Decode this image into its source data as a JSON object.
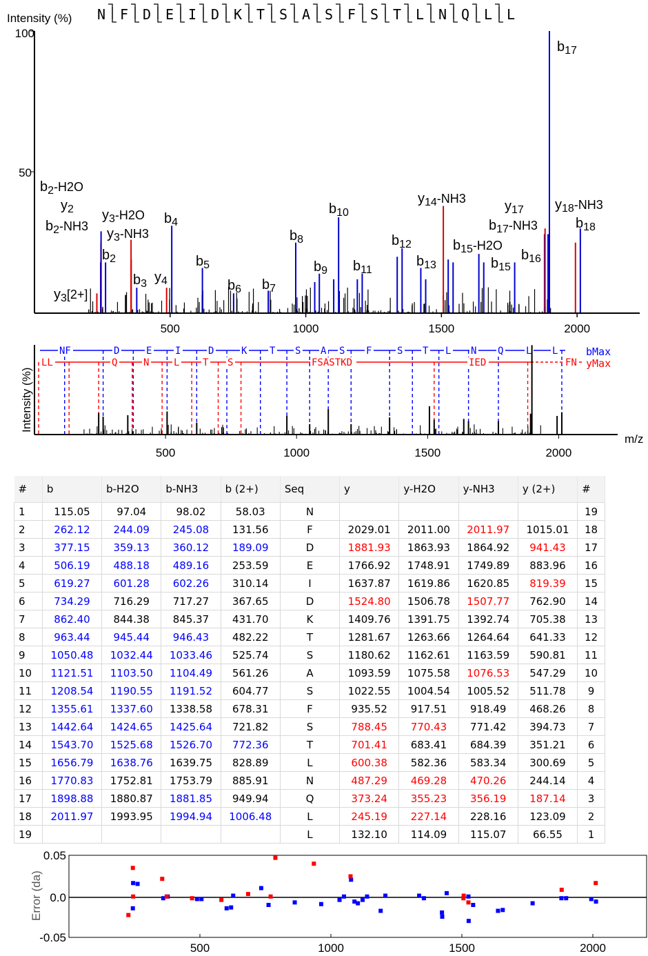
{
  "sequence": [
    "N",
    "F",
    "D",
    "E",
    "I",
    "D",
    "K",
    "T",
    "S",
    "A",
    "S",
    "F",
    "S",
    "T",
    "L",
    "N",
    "Q",
    "L",
    "L"
  ],
  "spectrum": {
    "ylabel": "Intensity (%)",
    "yticks": [
      "100",
      "50"
    ],
    "xticks": [
      "500",
      "1000",
      "1500",
      "2000"
    ],
    "xlim": [
      0,
      2200
    ],
    "ylim": [
      0,
      100
    ],
    "colors": {
      "b": "#0000cc",
      "y": "#dd0000",
      "other": "#000000"
    },
    "annotated_peaks": [
      {
        "mz": 230,
        "i": 7,
        "ion": "y",
        "label": "y3[2+]"
      },
      {
        "mz": 244,
        "i": 18,
        "ion": "b",
        "label": "b2-H2O"
      },
      {
        "mz": 245,
        "i": 25,
        "ion": "y",
        "label": "y2"
      },
      {
        "mz": 245.5,
        "i": 29,
        "ion": "b",
        "label": "b2-NH3"
      },
      {
        "mz": 262,
        "i": 18,
        "ion": "b",
        "label": "b2"
      },
      {
        "mz": 356,
        "i": 26,
        "ion": "y",
        "label": "y3-H2O"
      },
      {
        "mz": 356.5,
        "i": 19,
        "ion": "y",
        "label": "y3-NH3"
      },
      {
        "mz": 377,
        "i": 9,
        "ion": "b",
        "label": "b3"
      },
      {
        "mz": 487,
        "i": 9,
        "ion": "y",
        "label": "y4"
      },
      {
        "mz": 506,
        "i": 31,
        "ion": "b",
        "label": "b4"
      },
      {
        "mz": 619,
        "i": 16,
        "ion": "b",
        "label": "b5"
      },
      {
        "mz": 734,
        "i": 7,
        "ion": "b",
        "label": "b6"
      },
      {
        "mz": 862,
        "i": 8,
        "ion": "b",
        "label": "b7"
      },
      {
        "mz": 963,
        "i": 25,
        "ion": "b",
        "label": "b8"
      },
      {
        "mz": 1050,
        "i": 14,
        "ion": "b",
        "label": "b9"
      },
      {
        "mz": 1121,
        "i": 34,
        "ion": "b",
        "label": "b10"
      },
      {
        "mz": 1208,
        "i": 14,
        "ion": "b",
        "label": "b11"
      },
      {
        "mz": 1355,
        "i": 23,
        "ion": "b",
        "label": "b12"
      },
      {
        "mz": 1442,
        "i": 12,
        "ion": "b",
        "label": "b13"
      },
      {
        "mz": 1507,
        "i": 38,
        "ion": "y",
        "label": "y14-NH3"
      },
      {
        "mz": 1525,
        "i": 19,
        "ion": "b",
        "label": "b15-H2O"
      },
      {
        "mz": 1656,
        "i": 18,
        "ion": "b",
        "label": "b15"
      },
      {
        "mz": 1770,
        "i": 18,
        "ion": "b",
        "label": "b16"
      },
      {
        "mz": 1880,
        "i": 28,
        "ion": "b",
        "label": "b17-NH3"
      },
      {
        "mz": 1882,
        "i": 30,
        "ion": "y",
        "label": "y17"
      },
      {
        "mz": 1898,
        "i": 100,
        "ion": "b",
        "label": "b17"
      },
      {
        "mz": 1994,
        "i": 25,
        "ion": "y",
        "label": "y18-NH3"
      },
      {
        "mz": 2012,
        "i": 30,
        "ion": "b",
        "label": "b18"
      }
    ],
    "extra_peaks": [
      {
        "mz": 1337,
        "i": 20,
        "ion": "b"
      },
      {
        "mz": 1424,
        "i": 16,
        "ion": "b"
      },
      {
        "mz": 1543,
        "i": 18,
        "ion": "b"
      },
      {
        "mz": 1638,
        "i": 21,
        "ion": "b"
      },
      {
        "mz": 1033,
        "i": 11,
        "ion": "b"
      },
      {
        "mz": 1103,
        "i": 12,
        "ion": "b"
      },
      {
        "mz": 1190,
        "i": 12,
        "ion": "b"
      },
      {
        "mz": 1752,
        "i": 4,
        "ion": "other"
      },
      {
        "mz": 1880.5,
        "i": 7,
        "ion": "other"
      },
      {
        "mz": 1893,
        "i": 28,
        "ion": "b"
      }
    ]
  },
  "mini": {
    "ylabel": "Intensity (%)",
    "xlabel": "m/z",
    "xticks": [
      "500",
      "1000",
      "1500",
      "2000"
    ],
    "b_labels": [
      "NF",
      "D",
      "E",
      "I",
      "D",
      "K",
      "T",
      "S",
      "A",
      "S",
      "F",
      "S",
      "T",
      "L",
      "N",
      "Q",
      "L",
      "L"
    ],
    "y_labels": [
      "LL",
      "Q",
      "N",
      "L",
      "T",
      "S",
      "FSASTKD",
      "IED",
      "FN"
    ],
    "b_max": "bMax",
    "y_max": "yMax"
  },
  "table": {
    "headers": [
      "#",
      "b",
      "b-H2O",
      "b-NH3",
      "b (2+)",
      "Seq",
      "y",
      "y-H2O",
      "y-NH3",
      "y (2+)",
      "#"
    ],
    "rows": [
      [
        "1",
        "115.05",
        "97.04",
        "98.02",
        "58.03",
        "N",
        "",
        "",
        "",
        "",
        "19"
      ],
      [
        "2",
        "262.12",
        "244.09",
        "245.08",
        "131.56",
        "F",
        "2029.01",
        "2011.00",
        "2011.97",
        "1015.01",
        "18"
      ],
      [
        "3",
        "377.15",
        "359.13",
        "360.12",
        "189.09",
        "D",
        "1881.93",
        "1863.93",
        "1864.92",
        "941.43",
        "17"
      ],
      [
        "4",
        "506.19",
        "488.18",
        "489.16",
        "253.59",
        "E",
        "1766.92",
        "1748.91",
        "1749.89",
        "883.96",
        "16"
      ],
      [
        "5",
        "619.27",
        "601.28",
        "602.26",
        "310.14",
        "I",
        "1637.87",
        "1619.86",
        "1620.85",
        "819.39",
        "15"
      ],
      [
        "6",
        "734.29",
        "716.29",
        "717.27",
        "367.65",
        "D",
        "1524.80",
        "1506.78",
        "1507.77",
        "762.90",
        "14"
      ],
      [
        "7",
        "862.40",
        "844.38",
        "845.37",
        "431.70",
        "K",
        "1409.76",
        "1391.75",
        "1392.74",
        "705.38",
        "13"
      ],
      [
        "8",
        "963.44",
        "945.44",
        "946.43",
        "482.22",
        "T",
        "1281.67",
        "1263.66",
        "1264.64",
        "641.33",
        "12"
      ],
      [
        "9",
        "1050.48",
        "1032.44",
        "1033.46",
        "525.74",
        "S",
        "1180.62",
        "1162.61",
        "1163.59",
        "590.81",
        "11"
      ],
      [
        "10",
        "1121.51",
        "1103.50",
        "1104.49",
        "561.26",
        "A",
        "1093.59",
        "1075.58",
        "1076.53",
        "547.29",
        "10"
      ],
      [
        "11",
        "1208.54",
        "1190.55",
        "1191.52",
        "604.77",
        "S",
        "1022.55",
        "1004.54",
        "1005.52",
        "511.78",
        "9"
      ],
      [
        "12",
        "1355.61",
        "1337.60",
        "1338.58",
        "678.31",
        "F",
        "935.52",
        "917.51",
        "918.49",
        "468.26",
        "8"
      ],
      [
        "13",
        "1442.64",
        "1424.65",
        "1425.64",
        "721.82",
        "S",
        "788.45",
        "770.43",
        "771.42",
        "394.73",
        "7"
      ],
      [
        "14",
        "1543.70",
        "1525.68",
        "1526.70",
        "772.36",
        "T",
        "701.41",
        "683.41",
        "684.39",
        "351.21",
        "6"
      ],
      [
        "15",
        "1656.79",
        "1638.76",
        "1639.75",
        "828.89",
        "L",
        "600.38",
        "582.36",
        "583.34",
        "300.69",
        "5"
      ],
      [
        "16",
        "1770.83",
        "1752.81",
        "1753.79",
        "885.91",
        "N",
        "487.29",
        "469.28",
        "470.26",
        "244.14",
        "4"
      ],
      [
        "17",
        "1898.88",
        "1880.87",
        "1881.85",
        "949.94",
        "Q",
        "373.24",
        "355.23",
        "356.19",
        "187.14",
        "3"
      ],
      [
        "18",
        "2011.97",
        "1993.95",
        "1994.94",
        "1006.48",
        "L",
        "245.19",
        "227.14",
        "228.16",
        "123.09",
        "2"
      ],
      [
        "19",
        "",
        "",
        "",
        "",
        "L",
        "132.10",
        "114.09",
        "115.07",
        "66.55",
        "1"
      ]
    ],
    "colors": [
      [
        "k",
        "k",
        "k",
        "k",
        "k",
        "k",
        "k",
        "k",
        "k",
        "k",
        "k"
      ],
      [
        "k",
        "b",
        "b",
        "b",
        "k",
        "k",
        "k",
        "k",
        "r",
        "k",
        "k"
      ],
      [
        "k",
        "b",
        "b",
        "b",
        "b",
        "k",
        "r",
        "k",
        "k",
        "r",
        "k"
      ],
      [
        "k",
        "b",
        "b",
        "b",
        "k",
        "k",
        "k",
        "k",
        "k",
        "k",
        "k"
      ],
      [
        "k",
        "b",
        "b",
        "b",
        "k",
        "k",
        "k",
        "k",
        "k",
        "r",
        "k"
      ],
      [
        "k",
        "b",
        "k",
        "k",
        "k",
        "k",
        "r",
        "k",
        "r",
        "k",
        "k"
      ],
      [
        "k",
        "b",
        "k",
        "k",
        "k",
        "k",
        "k",
        "k",
        "k",
        "k",
        "k"
      ],
      [
        "k",
        "b",
        "b",
        "b",
        "k",
        "k",
        "k",
        "k",
        "k",
        "k",
        "k"
      ],
      [
        "k",
        "b",
        "b",
        "b",
        "k",
        "k",
        "k",
        "k",
        "k",
        "k",
        "k"
      ],
      [
        "k",
        "b",
        "b",
        "b",
        "k",
        "k",
        "k",
        "k",
        "r",
        "k",
        "k"
      ],
      [
        "k",
        "b",
        "b",
        "b",
        "k",
        "k",
        "k",
        "k",
        "k",
        "k",
        "k"
      ],
      [
        "k",
        "b",
        "b",
        "k",
        "k",
        "k",
        "k",
        "k",
        "k",
        "k",
        "k"
      ],
      [
        "k",
        "b",
        "b",
        "b",
        "k",
        "k",
        "r",
        "r",
        "k",
        "k",
        "k"
      ],
      [
        "k",
        "b",
        "b",
        "b",
        "b",
        "k",
        "r",
        "k",
        "k",
        "k",
        "k"
      ],
      [
        "k",
        "b",
        "b",
        "k",
        "k",
        "k",
        "r",
        "k",
        "k",
        "k",
        "k"
      ],
      [
        "k",
        "b",
        "k",
        "k",
        "k",
        "k",
        "r",
        "r",
        "r",
        "k",
        "k"
      ],
      [
        "k",
        "b",
        "k",
        "b",
        "k",
        "k",
        "r",
        "r",
        "r",
        "r",
        "k"
      ],
      [
        "k",
        "b",
        "k",
        "b",
        "b",
        "k",
        "r",
        "r",
        "k",
        "k",
        "k"
      ],
      [
        "k",
        "k",
        "k",
        "k",
        "k",
        "k",
        "k",
        "k",
        "k",
        "k",
        "k"
      ]
    ]
  },
  "error_plot": {
    "ylabel": "Error (da)",
    "yticks": [
      "0.05",
      "0.0",
      "-0.05"
    ],
    "xticks": [
      "500",
      "1000",
      "1500",
      "2000"
    ],
    "xlim": [
      0,
      2200
    ],
    "ylim": [
      -0.05,
      0.05
    ],
    "points_b": [
      [
        262,
        0.016
      ],
      [
        245,
        0.017
      ],
      [
        244,
        -0.013
      ],
      [
        377,
        0.001
      ],
      [
        360,
        -0.001
      ],
      [
        506,
        -0.002
      ],
      [
        489,
        -0.002
      ],
      [
        619,
        -0.012
      ],
      [
        602,
        -0.013
      ],
      [
        627,
        0.002
      ],
      [
        734,
        0.011
      ],
      [
        762,
        -0.009
      ],
      [
        862,
        -0.006
      ],
      [
        963,
        -0.008
      ],
      [
        1033,
        -0.003
      ],
      [
        1050,
        0.001
      ],
      [
        1077,
        0.021
      ],
      [
        1090,
        -0.005
      ],
      [
        1103,
        -0.007
      ],
      [
        1121,
        -0.003
      ],
      [
        1138,
        0.001
      ],
      [
        1190,
        -0.016
      ],
      [
        1208,
        0.002
      ],
      [
        1337,
        0.002
      ],
      [
        1355,
        -0.001
      ],
      [
        1424,
        -0.018
      ],
      [
        1425,
        -0.023
      ],
      [
        1442,
        0.005
      ],
      [
        1525,
        0.001
      ],
      [
        1526,
        -0.028
      ],
      [
        1543,
        -0.009
      ],
      [
        1638,
        -0.016
      ],
      [
        1656,
        -0.015
      ],
      [
        1770,
        -0.007
      ],
      [
        1880,
        -0.001
      ],
      [
        1898,
        -0.001
      ],
      [
        1994,
        -0.002
      ],
      [
        2012,
        -0.005
      ]
    ],
    "points_y": [
      [
        227,
        -0.021
      ],
      [
        244,
        0.035
      ],
      [
        245,
        0.001
      ],
      [
        356,
        0.022
      ],
      [
        373,
        0.001
      ],
      [
        470,
        -0.001
      ],
      [
        582,
        -0.003
      ],
      [
        684,
        0.004
      ],
      [
        770,
        0.001
      ],
      [
        788,
        0.047
      ],
      [
        935,
        0.04
      ],
      [
        1075,
        0.025
      ],
      [
        1506,
        -0.001
      ],
      [
        1507,
        0.002
      ],
      [
        1525,
        -0.006
      ],
      [
        1881,
        0.009
      ],
      [
        2011,
        0.017
      ]
    ]
  }
}
